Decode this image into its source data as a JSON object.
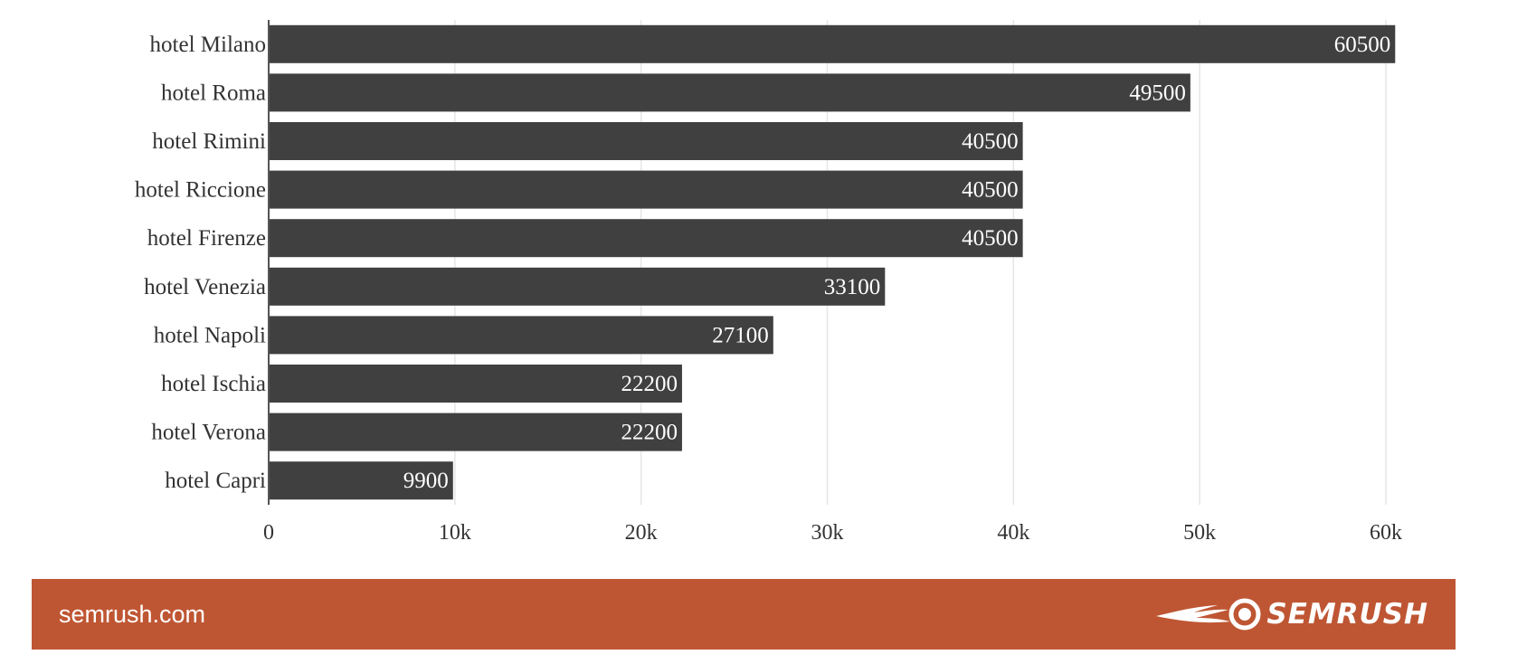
{
  "chart_data": {
    "type": "bar",
    "orientation": "horizontal",
    "categories": [
      "hotel Milano",
      "hotel Roma",
      "hotel Rimini",
      "hotel Riccione",
      "hotel Firenze",
      "hotel Venezia",
      "hotel Napoli",
      "hotel Ischia",
      "hotel Verona",
      "hotel Capri"
    ],
    "values": [
      60500,
      49500,
      40500,
      40500,
      40500,
      33100,
      27100,
      22200,
      22200,
      9900
    ],
    "xticks": [
      "0",
      "10k",
      "20k",
      "30k",
      "40k",
      "50k",
      "60k"
    ],
    "xlim": [
      0,
      60000
    ],
    "grid": true,
    "bar_color": "#404040",
    "value_label_color": "#ffffff"
  },
  "footer": {
    "site": "semrush.com",
    "brand": "SEMRUSH",
    "brand_logo_icon": "semrush-fireball-icon",
    "background": "#bf5633"
  }
}
